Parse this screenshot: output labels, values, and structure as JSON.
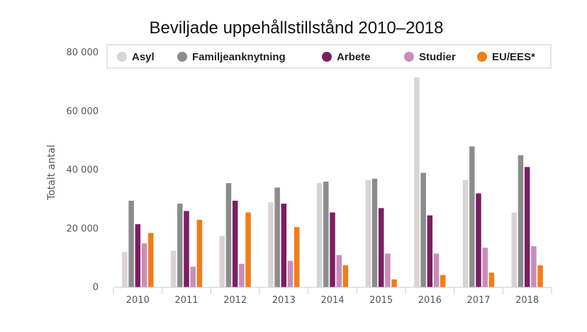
{
  "chart_data": {
    "type": "bar",
    "title": "Beviljade uppehållstillstånd 2010–2018",
    "xlabel": "",
    "ylabel": "Totalt antal",
    "ylim": [
      0,
      80000
    ],
    "yticks": [
      0,
      20000,
      40000,
      60000,
      80000
    ],
    "ytick_labels": [
      "0",
      "20 000",
      "40 000",
      "60 000",
      "80 000"
    ],
    "grid": false,
    "legend_position": "top",
    "categories": [
      "2010",
      "2011",
      "2012",
      "2013",
      "2014",
      "2015",
      "2016",
      "2017",
      "2018"
    ],
    "series": [
      {
        "name": "Asyl",
        "color": "#d9d4d2",
        "values": [
          12000,
          12500,
          17500,
          29000,
          35500,
          36500,
          71500,
          36500,
          25500
        ]
      },
      {
        "name": "Familjeanknytning",
        "color": "#8c8c8c",
        "values": [
          29500,
          28500,
          35500,
          34000,
          36000,
          37000,
          39000,
          48000,
          45000
        ]
      },
      {
        "name": "Arbete",
        "color": "#7b1e62",
        "values": [
          21500,
          26000,
          29500,
          28500,
          25500,
          27000,
          24500,
          32000,
          41000
        ]
      },
      {
        "name": "Studier",
        "color": "#c98db8",
        "values": [
          15000,
          7000,
          8000,
          9000,
          11000,
          11500,
          11500,
          13500,
          14000
        ]
      },
      {
        "name": "EU/EES*",
        "color": "#f07d18",
        "values": [
          18500,
          23000,
          25500,
          20500,
          7500,
          2700,
          4200,
          5000,
          7500
        ]
      }
    ]
  }
}
